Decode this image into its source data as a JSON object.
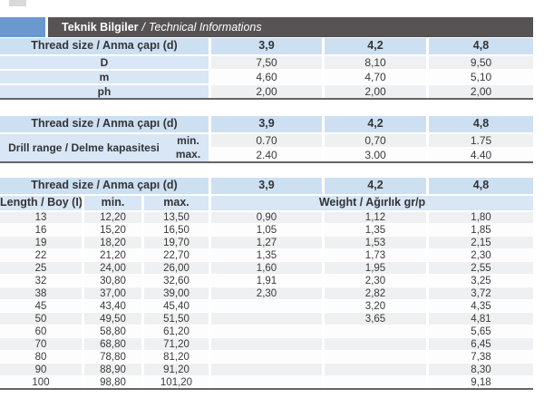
{
  "header": {
    "title_tr": "Teknik Bilgiler",
    "separator": "/",
    "title_en": "Technical Informations"
  },
  "colors": {
    "accent_blue": "#6b99cf",
    "bar_dark_gray": "#575254",
    "header_cell_blue": "#cde0f2",
    "label_cell_blue": "#d8e6f5",
    "stripe_gray": "#eef0f2"
  },
  "table1": {
    "header_label": "Thread size / Anma çapı (d)",
    "sizes": [
      "3,9",
      "4,2",
      "4,8"
    ],
    "rows": [
      {
        "label": "D",
        "values": [
          "7,50",
          "8,10",
          "9,50"
        ]
      },
      {
        "label": "m",
        "values": [
          "4,60",
          "4,70",
          "5,10"
        ]
      },
      {
        "label": "ph",
        "values": [
          "2,00",
          "2,00",
          "2,00"
        ]
      }
    ]
  },
  "table2": {
    "header_label": "Thread size / Anma çapı (d)",
    "sizes": [
      "3,9",
      "4,2",
      "4,8"
    ],
    "row_label": "Drill range / Delme kapasitesi",
    "min_label": "min.",
    "max_label": "max.",
    "min_values": [
      "0.70",
      "0,70",
      "1.75"
    ],
    "max_values": [
      "2.40",
      "3.00",
      "4.40"
    ]
  },
  "table3": {
    "header_label": "Thread size / Anma çapı (d)",
    "sizes": [
      "3,9",
      "4,2",
      "4,8"
    ],
    "length_label": "Length / Boy (I)",
    "min_label": "min.",
    "max_label": "max.",
    "weight_label": "Weight / Ağırlık gr/p",
    "rows": [
      [
        "13",
        "12,20",
        "13,50",
        "0,90",
        "1,12",
        "1,80"
      ],
      [
        "16",
        "15,20",
        "16,50",
        "1,05",
        "1,35",
        "1,85"
      ],
      [
        "19",
        "18,20",
        "19,70",
        "1,27",
        "1,53",
        "2,15"
      ],
      [
        "22",
        "21,20",
        "22,70",
        "1,35",
        "1,73",
        "2,30"
      ],
      [
        "25",
        "24,00",
        "26,00",
        "1,60",
        "1,95",
        "2,55"
      ],
      [
        "32",
        "30,80",
        "32,60",
        "1,91",
        "2,30",
        "3,25"
      ],
      [
        "38",
        "37,00",
        "39,00",
        "2,30",
        "2,82",
        "3,72"
      ],
      [
        "45",
        "43,40",
        "45,40",
        "",
        "3,20",
        "4,35"
      ],
      [
        "50",
        "49,50",
        "51,50",
        "",
        "3,65",
        "4,81"
      ],
      [
        "60",
        "58,80",
        "61,20",
        "",
        "",
        "5,65"
      ],
      [
        "70",
        "68,80",
        "71,20",
        "",
        "",
        "6,45"
      ],
      [
        "80",
        "78,80",
        "81,20",
        "",
        "",
        "7,38"
      ],
      [
        "90",
        "88,90",
        "91,20",
        "",
        "",
        "8,30"
      ],
      [
        "100",
        "98,80",
        "101,20",
        "",
        "",
        "9,18"
      ]
    ]
  }
}
